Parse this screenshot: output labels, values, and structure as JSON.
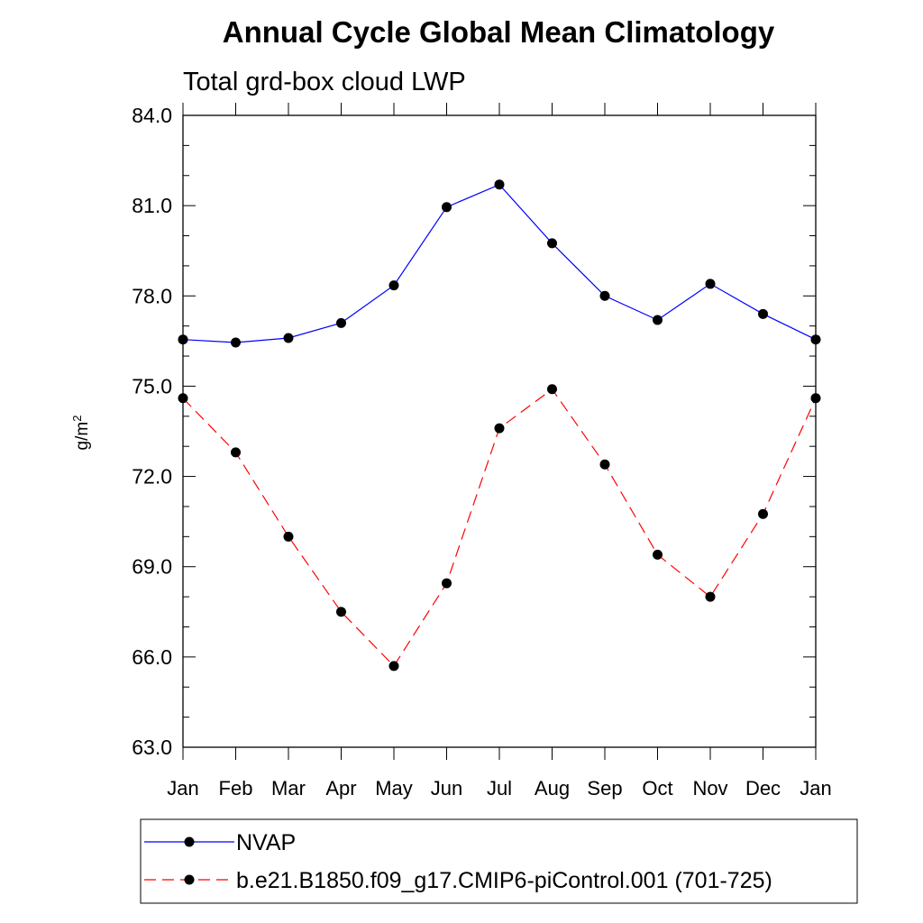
{
  "chart_data": {
    "type": "line",
    "title": "Annual Cycle Global Mean Climatology",
    "subtitle": "Total grd-box cloud LWP",
    "ylabel_base": "g/m",
    "ylabel_sup": "2",
    "xlabel": "",
    "categories": [
      "Jan",
      "Feb",
      "Mar",
      "Apr",
      "May",
      "Jun",
      "Jul",
      "Aug",
      "Sep",
      "Oct",
      "Nov",
      "Dec",
      "Jan"
    ],
    "ylim": [
      63.0,
      84.0
    ],
    "yticks": [
      "63.0",
      "66.0",
      "69.0",
      "72.0",
      "75.0",
      "78.0",
      "81.0",
      "84.0"
    ],
    "grid": false,
    "legend_position": "bottom",
    "series": [
      {
        "name": "NVAP",
        "color": "#0000ff",
        "dash": "solid",
        "marker": "filled-circle",
        "values": [
          76.55,
          76.45,
          76.6,
          77.1,
          78.35,
          80.95,
          81.7,
          79.75,
          78.0,
          77.2,
          78.4,
          77.4,
          76.55
        ]
      },
      {
        "name": "b.e21.B1850.f09_g17.CMIP6-piControl.001 (701-725)",
        "color": "#ff0000",
        "dash": "dashed",
        "marker": "filled-circle",
        "values": [
          74.6,
          72.8,
          70.0,
          67.5,
          65.7,
          68.45,
          73.6,
          74.9,
          72.4,
          69.4,
          68.0,
          70.75,
          74.6
        ]
      }
    ]
  }
}
